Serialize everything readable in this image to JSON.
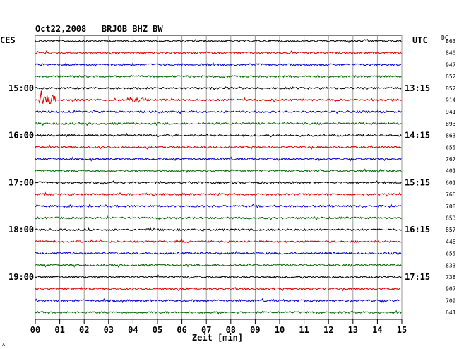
{
  "chart_data": {
    "type": "line",
    "title": "Oct22,2008   BRJOB BHZ BW",
    "xlabel": "Zeit [min]",
    "left_label": "CES",
    "right_label": "UTC",
    "dc_label": "DC",
    "xlim": [
      0,
      15
    ],
    "x_tick_labels": [
      "00",
      "01",
      "02",
      "03",
      "04",
      "05",
      "06",
      "07",
      "08",
      "09",
      "10",
      "11",
      "12",
      "13",
      "14",
      "15"
    ],
    "time_labels_left": [
      {
        "row": 4,
        "text": "15:00"
      },
      {
        "row": 8,
        "text": "16:00"
      },
      {
        "row": 12,
        "text": "17:00"
      },
      {
        "row": 16,
        "text": "18:00"
      },
      {
        "row": 20,
        "text": "19:00"
      }
    ],
    "time_labels_right": [
      {
        "row": 4,
        "text": "13:15"
      },
      {
        "row": 8,
        "text": "14:15"
      },
      {
        "row": 12,
        "text": "15:15"
      },
      {
        "row": 16,
        "text": "16:15"
      },
      {
        "row": 20,
        "text": "17:15"
      }
    ],
    "dc_values": [
      "863",
      "840",
      "947",
      "652",
      "852",
      "914",
      "941",
      "893",
      "863",
      "655",
      "767",
      "401",
      "601",
      "766",
      "700",
      "853",
      "857",
      "446",
      "655",
      "833",
      "738",
      "907",
      "709",
      "641"
    ],
    "trace_colors": [
      "#000000",
      "#dd0000",
      "#0000cc",
      "#006600"
    ],
    "grid": true,
    "footer_mark": "ʌ"
  }
}
